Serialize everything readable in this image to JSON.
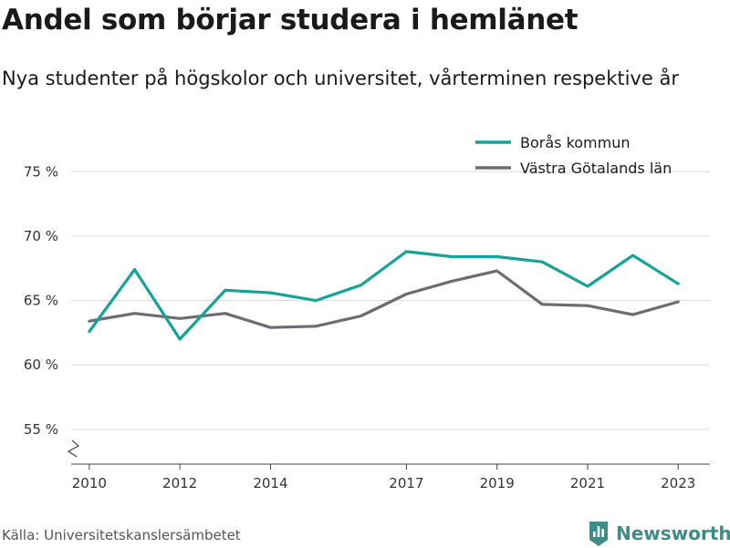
{
  "title": "Andel som börjar studera i hemlänet",
  "subtitle": "Nya studenter på högskolor och universitet, vårterminen respektive år",
  "source": "Källa: Universitetskanslersämbetet",
  "brand": {
    "name": "Newsworthy",
    "icon": "newsworthy-bar-chart-icon",
    "color": "#3e8c88"
  },
  "chart_data": {
    "type": "line",
    "title": "Andel som börjar studera i hemlänet",
    "subtitle": "Nya studenter på högskolor och universitet, vårterminen respektive år",
    "xlabel": "",
    "ylabel": "",
    "x": [
      2010,
      2011,
      2012,
      2013,
      2014,
      2015,
      2016,
      2017,
      2018,
      2019,
      2020,
      2021,
      2022,
      2023
    ],
    "x_ticks": [
      "2010",
      "2012",
      "2014",
      "2017",
      "2019",
      "2021",
      "2023"
    ],
    "y_ticks": [
      {
        "value": 55,
        "label": "55 %"
      },
      {
        "value": 60,
        "label": "60 %"
      },
      {
        "value": 65,
        "label": "65 %"
      },
      {
        "value": 70,
        "label": "70 %"
      },
      {
        "value": 75,
        "label": "75 %"
      }
    ],
    "xlim": [
      2009.6,
      2023.7
    ],
    "ylim": [
      52.3,
      77
    ],
    "y_axis_break": true,
    "grid": true,
    "legend_position": "top-right",
    "series": [
      {
        "name": "Borås kommun",
        "color": "#14a398",
        "values": [
          62.6,
          67.4,
          62.0,
          65.8,
          65.6,
          65.0,
          66.2,
          68.8,
          68.4,
          68.4,
          68.0,
          66.1,
          68.5,
          66.3
        ]
      },
      {
        "name": "Västra Götalands län",
        "color": "#6d6b73",
        "values": [
          63.4,
          64.0,
          63.6,
          64.0,
          62.9,
          63.0,
          63.8,
          65.5,
          66.5,
          67.3,
          64.7,
          64.6,
          63.9,
          64.9
        ]
      }
    ]
  }
}
